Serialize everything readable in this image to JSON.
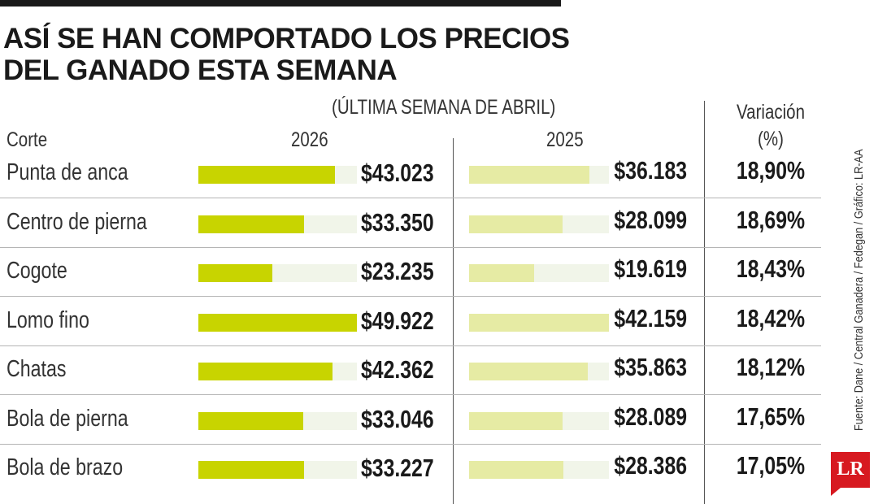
{
  "title_lines": [
    "ASÍ SE HAN COMPORTADO LOS PRECIOS",
    "DEL GANADO ESTA SEMANA"
  ],
  "source": "Fuente: Dane / Central Ganadera / Fedegan / Gráfico: LR-AA",
  "logo": "LR",
  "colors": {
    "bar_2026": "#c8d400",
    "bar_2025": "#e6eba4",
    "track": "#f1f5e9",
    "text": "#1a1a1a",
    "logo": "#d71920"
  },
  "chart_data": {
    "type": "bar",
    "subtitle": "(ÚLTIMA SEMANA DE ABRIL)",
    "headers": {
      "corte": "Corte",
      "y2026": "2026",
      "y2025": "2025",
      "variation_line1": "Variación",
      "variation_line2": "(%)"
    },
    "categories": [
      "Punta de anca",
      "Centro de pierna",
      "Cogote",
      "Lomo fino",
      "Chatas",
      "Bola de pierna",
      "Bola de brazo"
    ],
    "series": [
      {
        "name": "2026",
        "values": [
          43023,
          33350,
          23235,
          49922,
          42362,
          33046,
          33227
        ],
        "labels": [
          "$43.023",
          "$33.350",
          "$23.235",
          "$49.922",
          "$42.362",
          "$33.046",
          "$33.227"
        ]
      },
      {
        "name": "2025",
        "values": [
          36183,
          28099,
          19619,
          42159,
          35863,
          28089,
          28386
        ],
        "labels": [
          "$36.183",
          "$28.099",
          "$19.619",
          "$42.159",
          "$35.863",
          "$28.089",
          "$28.386"
        ]
      }
    ],
    "variation": [
      "18,90%",
      "18,69%",
      "18,43%",
      "18,42%",
      "18,12%",
      "17,65%",
      "17,05%"
    ],
    "xlim": [
      0,
      49922
    ]
  }
}
